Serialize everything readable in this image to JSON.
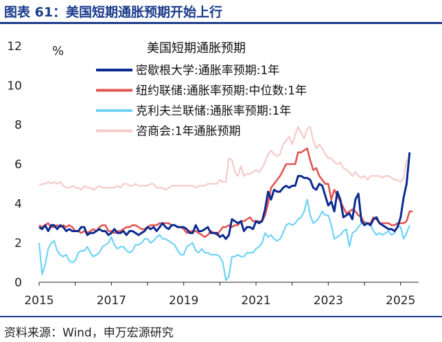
{
  "figure_title": "图表 61：美国短期通胀预期开始上行",
  "source": "资料来源：Wind，申万宏源研究",
  "colors": {
    "series_1": "#0b2a8f",
    "series_2": "#e15552",
    "series_3": "#6fd3f7",
    "series_4": "#f7c9c9",
    "frame": "#1a3a8a"
  },
  "chart_data": {
    "type": "line",
    "title": "美国短期通胀预期",
    "ylabel": "%",
    "ylim": [
      0,
      12
    ],
    "yticks": [
      0,
      2,
      4,
      6,
      8,
      10,
      12
    ],
    "xlim": [
      2015.0,
      2025.5
    ],
    "xticks": [
      2015,
      2017,
      2019,
      2021,
      2023,
      2025
    ],
    "grid": false,
    "legend_position": "top-center",
    "x_frequency": "monthly",
    "x_start": "2015-01",
    "series": [
      {
        "name": "密歇根大学:通胀率预期:1年",
        "color_key": "series_1",
        "values": [
          2.8,
          2.7,
          2.9,
          2.6,
          2.9,
          2.9,
          2.7,
          2.9,
          2.8,
          2.6,
          2.7,
          2.6,
          2.6,
          2.6,
          2.8,
          2.8,
          2.4,
          2.5,
          2.5,
          2.6,
          2.7,
          2.6,
          2.6,
          2.4,
          2.5,
          2.7,
          2.5,
          2.5,
          2.6,
          2.4,
          2.6,
          2.6,
          2.5,
          2.4,
          2.5,
          2.6,
          2.8,
          2.7,
          2.8,
          2.6,
          2.8,
          3.0,
          2.8,
          2.7,
          2.9,
          2.9,
          2.8,
          2.8,
          2.8,
          2.7,
          2.5,
          2.5,
          2.9,
          2.6,
          2.6,
          2.7,
          2.8,
          2.5,
          2.5,
          2.5,
          2.3,
          2.4,
          2.2,
          2.4,
          3.2,
          3.1,
          3.0,
          3.1,
          2.6,
          2.8,
          2.8,
          2.7,
          3.1,
          3.0,
          3.1,
          3.7,
          4.6,
          4.2,
          4.7,
          4.6,
          4.6,
          4.8,
          4.9,
          4.8,
          4.9,
          4.9,
          5.4,
          5.4,
          5.3,
          5.3,
          5.2,
          4.8,
          4.7,
          5.0,
          4.9,
          4.4,
          3.9,
          4.1,
          3.6,
          4.6,
          4.2,
          3.3,
          3.4,
          3.5,
          3.2,
          4.2,
          4.5,
          3.1,
          2.9,
          3.0,
          2.9,
          3.2,
          3.3,
          3.0,
          2.9,
          2.8,
          2.7,
          2.7,
          2.6,
          2.8,
          3.3,
          4.3,
          5.0,
          6.6
        ]
      },
      {
        "name": "纽约联储:通胀率预期:中位数:1年",
        "color_key": "series_2",
        "values": [
          2.9,
          2.8,
          2.9,
          3.0,
          2.8,
          2.8,
          2.9,
          2.8,
          2.9,
          2.8,
          2.9,
          2.8,
          2.6,
          2.6,
          2.5,
          2.6,
          2.5,
          2.6,
          2.7,
          2.6,
          2.8,
          2.9,
          2.9,
          2.6,
          2.6,
          2.5,
          2.6,
          2.6,
          2.7,
          2.8,
          2.8,
          2.9,
          2.9,
          2.8,
          2.7,
          2.7,
          2.8,
          2.9,
          2.9,
          2.9,
          3.0,
          3.0,
          3.0,
          3.0,
          2.9,
          2.9,
          2.8,
          2.8,
          2.7,
          2.5,
          2.6,
          2.6,
          2.6,
          2.5,
          2.4,
          2.3,
          2.4,
          2.6,
          2.5,
          2.4,
          2.6,
          2.8,
          2.8,
          2.9,
          2.8,
          2.9,
          2.9,
          3.1,
          3.1,
          3.2,
          3.3,
          3.1,
          3.1,
          3.1,
          3.1,
          3.4,
          4.0,
          4.8,
          5.0,
          5.2,
          5.4,
          5.7,
          6.0,
          6.0,
          6.0,
          6.0,
          6.6,
          6.6,
          6.7,
          6.8,
          6.2,
          5.7,
          5.8,
          5.4,
          5.2,
          5.0,
          5.0,
          4.2,
          4.7,
          4.4,
          4.1,
          3.8,
          3.5,
          3.6,
          3.7,
          3.6,
          3.4,
          3.3,
          3.0,
          3.0,
          3.0,
          3.3,
          3.2,
          3.0,
          3.0,
          3.0,
          3.0,
          2.9,
          2.9,
          3.0,
          3.0,
          3.0,
          3.1,
          3.6,
          3.6
        ]
      },
      {
        "name": "克利夫兰联储:通胀率预期:1年",
        "color_key": "series_3",
        "values": [
          2.0,
          0.4,
          0.9,
          1.7,
          2.0,
          2.1,
          1.6,
          1.4,
          1.3,
          1.4,
          1.1,
          1.0,
          1.1,
          1.5,
          1.6,
          1.6,
          1.8,
          1.5,
          1.3,
          1.4,
          1.5,
          1.8,
          1.9,
          2.0,
          2.3,
          1.9,
          1.7,
          1.8,
          1.8,
          1.6,
          1.5,
          1.6,
          1.9,
          1.9,
          2.0,
          2.2,
          2.2,
          2.0,
          2.1,
          2.3,
          2.4,
          2.2,
          2.2,
          2.1,
          2.0,
          1.9,
          1.6,
          1.4,
          1.4,
          1.8,
          1.9,
          2.0,
          1.6,
          1.5,
          1.7,
          1.5,
          1.5,
          1.4,
          1.4,
          1.4,
          1.3,
          1.0,
          0.1,
          0.3,
          1.3,
          1.3,
          1.4,
          1.3,
          1.3,
          1.5,
          1.5,
          1.5,
          1.7,
          1.8,
          2.0,
          2.5,
          2.3,
          2.4,
          2.2,
          2.1,
          2.2,
          2.5,
          2.9,
          3.0,
          2.9,
          3.0,
          3.2,
          3.3,
          3.6,
          4.2,
          3.4,
          3.0,
          3.1,
          3.3,
          3.6,
          3.4,
          3.4,
          2.9,
          2.2,
          2.3,
          2.4,
          2.6,
          2.7,
          1.8,
          2.5,
          2.6,
          2.8,
          3.0,
          3.1,
          3.0,
          2.9,
          2.6,
          2.4,
          2.5,
          2.4,
          2.5,
          2.6,
          2.4,
          2.5,
          2.9,
          2.8,
          2.2,
          2.5,
          2.9
        ]
      },
      {
        "name": "咨商会:1年通胀预期",
        "color_key": "series_4",
        "values": [
          4.9,
          5.0,
          5.0,
          5.1,
          5.0,
          5.1,
          5.0,
          5.1,
          4.9,
          4.8,
          4.8,
          4.9,
          4.8,
          4.8,
          4.7,
          4.9,
          4.8,
          4.8,
          4.7,
          4.8,
          4.9,
          4.8,
          4.8,
          4.8,
          4.8,
          4.8,
          4.9,
          4.8,
          5.0,
          5.0,
          4.9,
          4.9,
          5.0,
          4.9,
          4.9,
          4.9,
          4.9,
          5.0,
          5.0,
          4.8,
          4.8,
          4.8,
          4.7,
          4.8,
          4.9,
          4.9,
          4.9,
          4.9,
          4.9,
          4.9,
          4.9,
          4.9,
          4.8,
          4.9,
          4.9,
          4.9,
          5.0,
          5.0,
          5.0,
          5.0,
          5.2,
          5.1,
          5.1,
          6.3,
          6.2,
          5.6,
          5.4,
          5.9,
          5.4,
          5.5,
          5.5,
          5.6,
          5.7,
          5.6,
          5.8,
          6.1,
          6.5,
          6.7,
          6.5,
          6.4,
          6.5,
          7.0,
          7.2,
          7.4,
          7.0,
          7.5,
          7.9,
          7.6,
          7.3,
          7.8,
          7.9,
          7.2,
          6.8,
          7.0,
          6.8,
          6.5,
          6.3,
          6.3,
          6.1,
          6.0,
          6.1,
          5.8,
          5.7,
          5.6,
          5.4,
          5.6,
          5.4,
          5.3,
          5.4,
          5.2,
          5.4,
          5.4,
          5.4,
          5.4,
          5.3,
          5.4,
          5.4,
          5.3,
          5.2,
          5.2,
          5.1,
          5.3,
          6.2,
          6.2
        ]
      }
    ]
  }
}
